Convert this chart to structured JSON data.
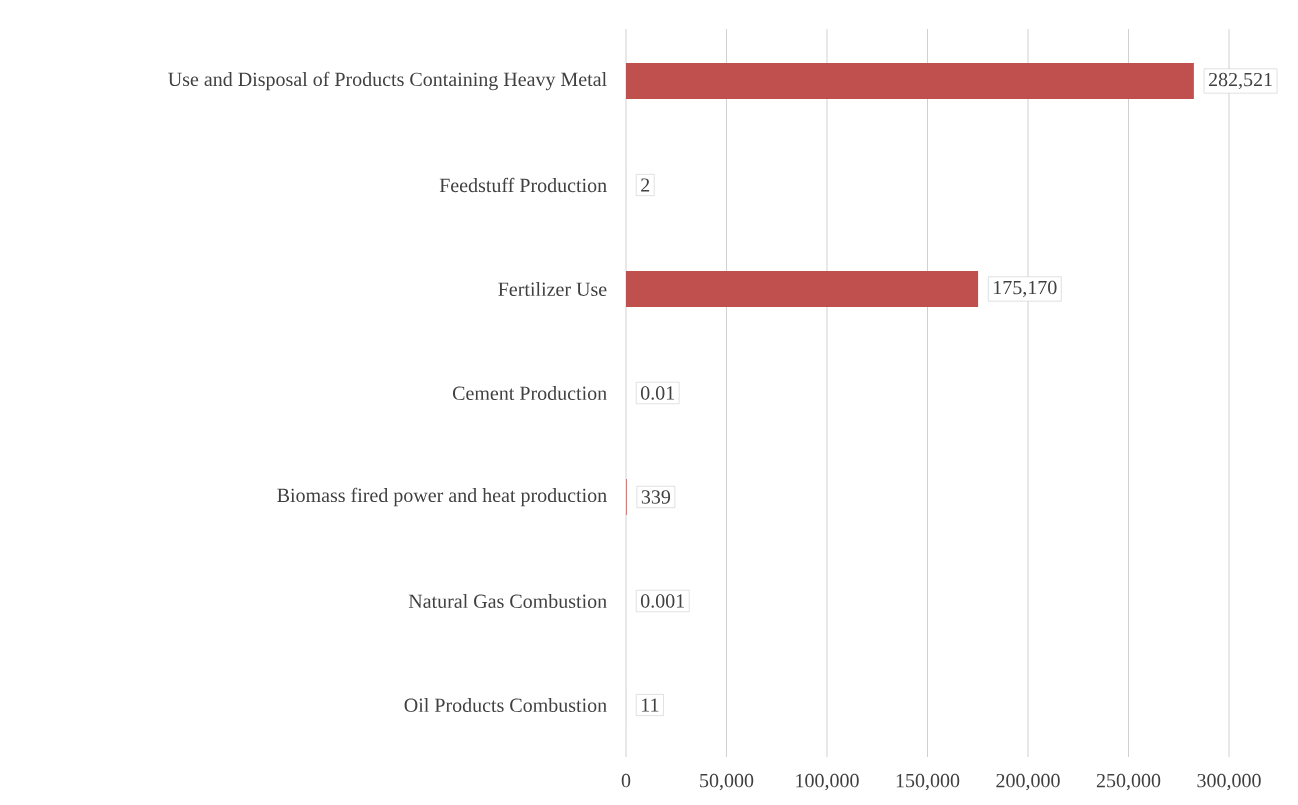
{
  "chart_data": {
    "type": "bar",
    "orientation": "horizontal",
    "categories": [
      "Use and Disposal of Products Containing Heavy Metal",
      "Feedstuff Production",
      "Fertilizer Use",
      "Cement Production",
      "Biomass fired power and heat production",
      "Natural Gas Combustion",
      "Oil Products Combustion"
    ],
    "values": [
      282521,
      2,
      175170,
      0.01,
      339,
      0.001,
      11
    ],
    "value_labels": [
      "282,521",
      "2",
      "175,170",
      "0.01",
      "339",
      "0.001",
      "11"
    ],
    "color": "#c0504d",
    "xlim": [
      0,
      300000
    ],
    "xticks": [
      0,
      {
        "value": 50000,
        "label": "50,000"
      },
      {
        "value": 100000,
        "label": "100,000"
      },
      {
        "value": 150000,
        "label": "150,000"
      },
      {
        "value": 200000,
        "label": "200,000"
      },
      {
        "value": 250000,
        "label": "250,000"
      },
      {
        "value": 300000,
        "label": "300,000"
      }
    ],
    "grid": "x"
  }
}
